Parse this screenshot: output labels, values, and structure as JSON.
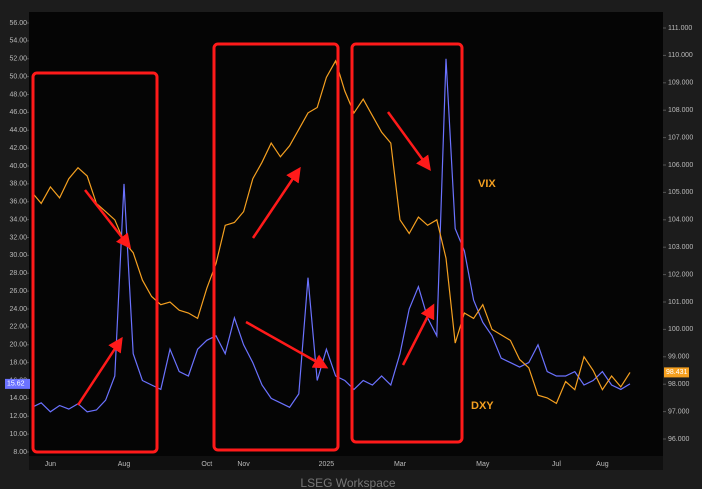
{
  "chart_data": {
    "type": "line",
    "categories": [
      null,
      null,
      "Jun",
      null,
      null,
      null,
      null,
      null,
      null,
      null,
      "Aug",
      null,
      null,
      null,
      null,
      null,
      null,
      null,
      null,
      "Oct",
      null,
      null,
      null,
      "Nov",
      null,
      null,
      null,
      null,
      null,
      null,
      null,
      null,
      "2025",
      null,
      null,
      null,
      null,
      null,
      null,
      null,
      "Mar",
      null,
      null,
      null,
      null,
      null,
      null,
      null,
      null,
      "May",
      null,
      null,
      null,
      null,
      null,
      null,
      null,
      "Jul",
      null,
      null,
      null,
      null,
      "Aug",
      null,
      null,
      null
    ],
    "series": [
      {
        "name": "VIX",
        "color": "#6b72ff",
        "last_label": "15.62",
        "values": [
          13.0,
          13.5,
          12.5,
          13.2,
          12.8,
          13.4,
          12.5,
          12.7,
          13.8,
          16.5,
          38.0,
          19.0,
          16.0,
          15.5,
          15.0,
          19.5,
          17.0,
          16.5,
          19.5,
          20.5,
          21.0,
          19.0,
          23.0,
          20.0,
          18.0,
          15.5,
          14.0,
          13.5,
          13.0,
          14.5,
          27.5,
          16.0,
          19.5,
          16.5,
          16.0,
          15.0,
          16.0,
          15.5,
          16.5,
          15.5,
          19.0,
          24.0,
          26.5,
          23.0,
          21.0,
          52.0,
          33.0,
          30.5,
          25.0,
          22.5,
          21.0,
          18.5,
          18.0,
          17.5,
          18.0,
          20.0,
          17.0,
          16.5,
          16.5,
          17.0,
          15.5,
          16.0,
          17.0,
          15.5,
          15.0,
          15.62
        ]
      },
      {
        "name": "DXY",
        "color": "#f5a020",
        "axis": "y2",
        "last_label": "98.431",
        "values": [
          105.0,
          104.6,
          105.2,
          104.8,
          105.5,
          105.9,
          105.6,
          104.6,
          104.3,
          104.0,
          103.2,
          102.8,
          101.8,
          101.2,
          100.9,
          101.0,
          100.7,
          100.6,
          100.4,
          101.5,
          102.4,
          103.8,
          103.9,
          104.3,
          105.5,
          106.1,
          106.8,
          106.3,
          106.7,
          107.3,
          107.9,
          108.1,
          109.2,
          109.8,
          108.7,
          107.9,
          108.4,
          107.8,
          107.2,
          106.8,
          104.0,
          103.5,
          104.1,
          103.8,
          104.0,
          102.6,
          99.5,
          100.6,
          100.4,
          100.9,
          100.0,
          99.8,
          99.6,
          98.9,
          98.6,
          97.6,
          97.5,
          97.3,
          98.1,
          97.8,
          99.0,
          98.5,
          97.8,
          98.3,
          97.9,
          98.431
        ]
      }
    ],
    "ylim": [
      8,
      56
    ],
    "yticks": [
      {
        "value": 8,
        "label": "8.00"
      },
      {
        "value": 10,
        "label": "10.00"
      },
      {
        "value": 12,
        "label": "12.00"
      },
      {
        "value": 14,
        "label": "14.00"
      },
      {
        "value": 16,
        "label": "16.00"
      },
      {
        "value": 18,
        "label": "18.00"
      },
      {
        "value": 20,
        "label": "20.00"
      },
      {
        "value": 22,
        "label": "22.00"
      },
      {
        "value": 24,
        "label": "24.00"
      },
      {
        "value": 26,
        "label": "26.00"
      },
      {
        "value": 28,
        "label": "28.00"
      },
      {
        "value": 30,
        "label": "30.00"
      },
      {
        "value": 32,
        "label": "32.00"
      },
      {
        "value": 34,
        "label": "34.00"
      },
      {
        "value": 36,
        "label": "36.00"
      },
      {
        "value": 38,
        "label": "38.00"
      },
      {
        "value": 40,
        "label": "40.00"
      },
      {
        "value": 42,
        "label": "42.00"
      },
      {
        "value": 44,
        "label": "44.00"
      },
      {
        "value": 46,
        "label": "46.00"
      },
      {
        "value": 48,
        "label": "48.00"
      },
      {
        "value": 50,
        "label": "50.00"
      },
      {
        "value": 52,
        "label": "52.00"
      },
      {
        "value": 54,
        "label": "54.00"
      },
      {
        "value": 56,
        "label": "56.00"
      }
    ],
    "y2lim": [
      96,
      111
    ],
    "y2ticks": [
      {
        "value": 96,
        "label": "96.000"
      },
      {
        "value": 97,
        "label": "97.000"
      },
      {
        "value": 98,
        "label": "98.000"
      },
      {
        "value": 99,
        "label": "99.000"
      },
      {
        "value": 100,
        "label": "100.000"
      },
      {
        "value": 101,
        "label": "101.000"
      },
      {
        "value": 102,
        "label": "102.000"
      },
      {
        "value": 103,
        "label": "103.000"
      },
      {
        "value": 104,
        "label": "104.000"
      },
      {
        "value": 105,
        "label": "105.000"
      },
      {
        "value": 106,
        "label": "106.000"
      },
      {
        "value": 107,
        "label": "107.000"
      },
      {
        "value": 108,
        "label": "108.000"
      },
      {
        "value": 109,
        "label": "109.000"
      },
      {
        "value": 110,
        "label": "110.000"
      },
      {
        "value": 111,
        "label": "111.000"
      }
    ],
    "footer": "LSEG Workspace"
  }
}
